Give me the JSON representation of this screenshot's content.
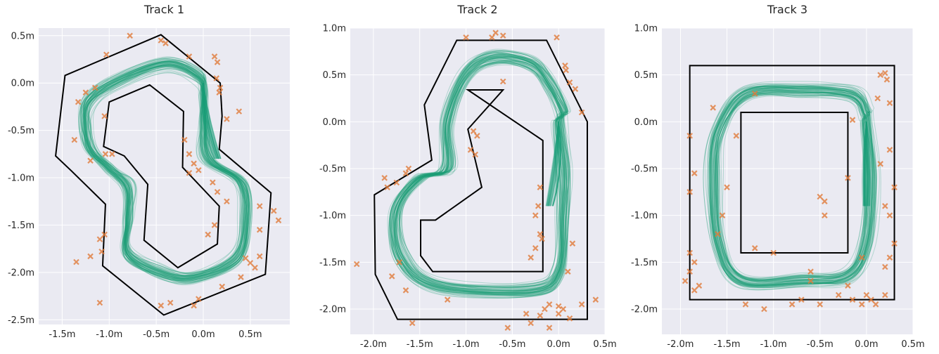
{
  "chart_data": [
    {
      "type": "line",
      "title": "Track 1",
      "xlim": [
        -1.75,
        0.92
      ],
      "ylim": [
        -2.55,
        0.58
      ],
      "x_ticks": [
        -1.5,
        -1.0,
        -0.5,
        0.0,
        0.5
      ],
      "x_tick_labels": [
        "-1.5m",
        "-1.0m",
        "-0.5m",
        "0.0m",
        "0.5m"
      ],
      "y_ticks": [
        0.5,
        0.0,
        -0.5,
        -1.0,
        -1.5,
        -2.0,
        -2.5
      ],
      "y_tick_labels": [
        "0.5m",
        "0.0m",
        "-0.5m",
        "-1.0m",
        "-1.5m",
        "-2.0m",
        "-2.5m"
      ],
      "grid": true,
      "track_outer": [
        [
          -1.47,
          0.08
        ],
        [
          -0.45,
          0.51
        ],
        [
          0.18,
          0.0
        ],
        [
          0.2,
          -0.35
        ],
        [
          0.17,
          -0.7
        ],
        [
          0.72,
          -1.16
        ],
        [
          0.66,
          -2.02
        ],
        [
          -0.42,
          -2.45
        ],
        [
          -1.07,
          -1.93
        ],
        [
          -1.04,
          -1.28
        ],
        [
          -1.4,
          -0.93
        ],
        [
          -1.57,
          -0.77
        ]
      ],
      "track_inner": [
        [
          -1.0,
          -0.2
        ],
        [
          -0.57,
          -0.02
        ],
        [
          -0.21,
          -0.3
        ],
        [
          -0.22,
          -0.89
        ],
        [
          0.17,
          -1.3
        ],
        [
          0.15,
          -1.7
        ],
        [
          -0.27,
          -1.95
        ],
        [
          -0.63,
          -1.66
        ],
        [
          -0.59,
          -1.07
        ],
        [
          -0.84,
          -0.77
        ],
        [
          -1.06,
          -0.67
        ]
      ],
      "centerline": [
        [
          -0.95,
          0.0
        ],
        [
          -0.4,
          0.2
        ],
        [
          -0.05,
          0.07
        ],
        [
          0.0,
          -0.1
        ],
        [
          0.0,
          -0.4
        ],
        [
          0.05,
          -0.8
        ],
        [
          0.4,
          -1.05
        ],
        [
          0.45,
          -1.45
        ],
        [
          0.35,
          -1.85
        ],
        [
          -0.1,
          -2.05
        ],
        [
          -0.45,
          -2.0
        ],
        [
          -0.8,
          -1.8
        ],
        [
          -0.8,
          -1.45
        ],
        [
          -0.8,
          -1.1
        ],
        [
          -1.0,
          -0.9
        ],
        [
          -1.2,
          -0.7
        ],
        [
          -1.25,
          -0.45
        ],
        [
          -1.22,
          -0.2
        ]
      ],
      "attractor_start": [
        0.0,
        0.0
      ],
      "attractor_end": [
        0.15,
        -0.8
      ],
      "markers": [
        [
          -0.78,
          0.5
        ],
        [
          -1.03,
          0.3
        ],
        [
          -0.45,
          0.45
        ],
        [
          -0.4,
          0.42
        ],
        [
          -0.15,
          0.28
        ],
        [
          0.12,
          0.28
        ],
        [
          0.15,
          0.22
        ],
        [
          0.14,
          0.05
        ],
        [
          0.17,
          -0.1
        ],
        [
          0.18,
          -0.05
        ],
        [
          -1.25,
          -0.1
        ],
        [
          -1.33,
          -0.2
        ],
        [
          -1.15,
          -0.05
        ],
        [
          -1.37,
          -0.6
        ],
        [
          -1.04,
          -0.75
        ],
        [
          -1.2,
          -0.82
        ],
        [
          -1.05,
          -0.35
        ],
        [
          -0.2,
          -0.6
        ],
        [
          -0.15,
          -0.75
        ],
        [
          -0.1,
          -0.85
        ],
        [
          -0.05,
          -0.92
        ],
        [
          -0.15,
          -0.95
        ],
        [
          0.1,
          -1.05
        ],
        [
          0.15,
          -1.15
        ],
        [
          0.25,
          -1.25
        ],
        [
          0.6,
          -1.3
        ],
        [
          0.75,
          -1.35
        ],
        [
          0.8,
          -1.45
        ],
        [
          0.6,
          -1.55
        ],
        [
          0.12,
          -1.5
        ],
        [
          0.05,
          -1.6
        ],
        [
          -1.05,
          -1.6
        ],
        [
          -1.1,
          -1.65
        ],
        [
          -1.08,
          -1.78
        ],
        [
          -1.2,
          -1.83
        ],
        [
          -1.35,
          -1.89
        ],
        [
          0.45,
          -1.85
        ],
        [
          0.55,
          -1.95
        ],
        [
          0.5,
          -1.9
        ],
        [
          0.6,
          -1.83
        ],
        [
          0.4,
          -2.05
        ],
        [
          0.2,
          -2.15
        ],
        [
          -0.05,
          -2.28
        ],
        [
          -0.1,
          -2.35
        ],
        [
          -0.35,
          -2.32
        ],
        [
          -0.45,
          -2.35
        ],
        [
          -1.1,
          -2.32
        ],
        [
          0.25,
          -0.38
        ],
        [
          0.38,
          -0.3
        ],
        [
          -0.97,
          -0.75
        ]
      ]
    },
    {
      "type": "line",
      "title": "Track 2",
      "xlim": [
        -2.25,
        0.5
      ],
      "ylim": [
        -2.27,
        1.0
      ],
      "x_ticks": [
        -2.0,
        -1.5,
        -1.0,
        -0.5,
        0.0,
        0.5
      ],
      "x_tick_labels": [
        "-2.0m",
        "-1.5m",
        "-1.0m",
        "-0.5m",
        "0.0m",
        "0.5m"
      ],
      "y_ticks": [
        1.0,
        0.5,
        0.0,
        -0.5,
        -1.0,
        -1.5,
        -2.0
      ],
      "y_tick_labels": [
        "1.0m",
        "0.5m",
        "0.0m",
        "-0.5m",
        "-1.0m",
        "-1.5m",
        "-2.0m"
      ],
      "grid": true,
      "track_outer": [
        [
          -1.1,
          0.87
        ],
        [
          -0.13,
          0.87
        ],
        [
          0.31,
          0.0
        ],
        [
          0.31,
          -2.11
        ],
        [
          -1.74,
          -2.11
        ],
        [
          -1.98,
          -1.63
        ],
        [
          -1.99,
          -0.78
        ],
        [
          -1.37,
          -0.41
        ],
        [
          -1.45,
          0.18
        ]
      ],
      "track_inner": [
        [
          -0.98,
          0.34
        ],
        [
          -0.6,
          0.34
        ],
        [
          -0.98,
          -0.08
        ],
        [
          -0.83,
          -0.7
        ],
        [
          -1.33,
          -1.05
        ],
        [
          -1.49,
          -1.05
        ],
        [
          -1.49,
          -1.43
        ],
        [
          -1.36,
          -1.6
        ],
        [
          -0.17,
          -1.6
        ],
        [
          -0.17,
          -0.2
        ]
      ],
      "centerline": [
        [
          0.0,
          0.0
        ],
        [
          0.05,
          -0.5
        ],
        [
          0.05,
          -1.0
        ],
        [
          0.0,
          -1.6
        ],
        [
          -0.3,
          -1.8
        ],
        [
          -1.3,
          -1.75
        ],
        [
          -1.7,
          -1.45
        ],
        [
          -1.75,
          -0.95
        ],
        [
          -1.5,
          -0.6
        ],
        [
          -1.2,
          -0.5
        ],
        [
          -1.2,
          0.0
        ],
        [
          -1.0,
          0.5
        ],
        [
          -0.7,
          0.68
        ],
        [
          -0.3,
          0.62
        ],
        [
          -0.1,
          0.4
        ],
        [
          0.05,
          0.1
        ]
      ],
      "attractor_start": [
        0.0,
        0.0
      ],
      "attractor_end": [
        -0.1,
        -0.9
      ],
      "markers": [
        [
          -1.0,
          0.9
        ],
        [
          -0.72,
          0.9
        ],
        [
          -0.68,
          0.95
        ],
        [
          -0.6,
          0.92
        ],
        [
          -0.02,
          0.9
        ],
        [
          0.07,
          0.6
        ],
        [
          0.08,
          0.55
        ],
        [
          0.12,
          0.42
        ],
        [
          0.18,
          0.35
        ],
        [
          0.25,
          0.1
        ],
        [
          -0.6,
          0.43
        ],
        [
          -0.92,
          -0.1
        ],
        [
          -0.95,
          -0.3
        ],
        [
          -0.9,
          -0.35
        ],
        [
          -0.88,
          -0.15
        ],
        [
          -1.62,
          -0.5
        ],
        [
          -1.65,
          -0.55
        ],
        [
          -1.75,
          -0.65
        ],
        [
          -1.88,
          -0.6
        ],
        [
          -1.85,
          -0.7
        ],
        [
          -0.2,
          -0.7
        ],
        [
          -0.22,
          -0.9
        ],
        [
          -0.25,
          -1.0
        ],
        [
          -0.2,
          -1.2
        ],
        [
          -0.18,
          -1.25
        ],
        [
          -0.25,
          -1.35
        ],
        [
          -0.3,
          -1.45
        ],
        [
          0.15,
          -1.3
        ],
        [
          0.1,
          -1.6
        ],
        [
          -1.72,
          -1.5
        ],
        [
          -2.18,
          -1.52
        ],
        [
          -1.8,
          -1.65
        ],
        [
          -1.65,
          -1.8
        ],
        [
          -1.58,
          -2.15
        ],
        [
          -1.2,
          -1.9
        ],
        [
          -0.35,
          -2.05
        ],
        [
          -0.3,
          -2.15
        ],
        [
          -0.2,
          -2.07
        ],
        [
          -0.1,
          -1.95
        ],
        [
          0.0,
          -1.97
        ],
        [
          0.05,
          -2.0
        ],
        [
          0.12,
          -2.1
        ],
        [
          -0.15,
          -2.0
        ],
        [
          0.0,
          -2.05
        ],
        [
          0.25,
          -1.95
        ],
        [
          0.4,
          -1.9
        ],
        [
          -0.55,
          -2.2
        ],
        [
          -0.1,
          -2.2
        ]
      ]
    },
    {
      "type": "line",
      "title": "Track 3",
      "xlim": [
        -2.2,
        0.5
      ],
      "ylim": [
        -2.27,
        1.0
      ],
      "x_ticks": [
        -2.0,
        -1.5,
        -1.0,
        -0.5,
        0.0,
        0.5
      ],
      "x_tick_labels": [
        "-2.0m",
        "-1.5m",
        "-1.0m",
        "-0.5m",
        "0.0m",
        "0.5m"
      ],
      "y_ticks": [
        1.0,
        0.5,
        0.0,
        -0.5,
        -1.0,
        -1.5,
        -2.0
      ],
      "y_tick_labels": [
        "1.0m",
        "0.5m",
        "0.0m",
        "-0.5m",
        "-1.0m",
        "-1.5m",
        "-2.0m"
      ],
      "grid": true,
      "track_outer": [
        [
          -1.9,
          0.6
        ],
        [
          0.3,
          0.6
        ],
        [
          0.3,
          -1.9
        ],
        [
          -1.9,
          -1.9
        ]
      ],
      "track_inner": [
        [
          -1.35,
          0.1
        ],
        [
          -0.2,
          0.1
        ],
        [
          -0.2,
          -1.4
        ],
        [
          -1.35,
          -1.4
        ]
      ],
      "centerline": [
        [
          0.0,
          0.0
        ],
        [
          0.05,
          -0.6
        ],
        [
          0.0,
          -1.3
        ],
        [
          -0.2,
          -1.65
        ],
        [
          -0.7,
          -1.7
        ],
        [
          -1.35,
          -1.7
        ],
        [
          -1.6,
          -1.3
        ],
        [
          -1.65,
          -0.6
        ],
        [
          -1.6,
          -0.1
        ],
        [
          -1.3,
          0.3
        ],
        [
          -0.7,
          0.35
        ],
        [
          -0.15,
          0.3
        ],
        [
          0.0,
          0.1
        ]
      ],
      "attractor_start": [
        0.0,
        0.0
      ],
      "attractor_end": [
        0.0,
        -0.9
      ],
      "markers": [
        [
          -1.4,
          -0.15
        ],
        [
          -1.9,
          -0.15
        ],
        [
          -1.85,
          -0.55
        ],
        [
          -1.9,
          -0.75
        ],
        [
          -1.6,
          -1.2
        ],
        [
          -1.55,
          -1.0
        ],
        [
          -1.5,
          -0.7
        ],
        [
          -1.2,
          0.3
        ],
        [
          -0.15,
          0.02
        ],
        [
          0.15,
          -0.45
        ],
        [
          0.25,
          -0.3
        ],
        [
          0.3,
          -0.7
        ],
        [
          0.2,
          -0.9
        ],
        [
          0.25,
          -1.0
        ],
        [
          0.2,
          -1.55
        ],
        [
          -0.05,
          -1.45
        ],
        [
          -0.45,
          -1.0
        ],
        [
          -0.5,
          -0.8
        ],
        [
          -0.45,
          -0.85
        ],
        [
          -0.2,
          -0.6
        ],
        [
          0.3,
          -1.3
        ],
        [
          0.25,
          -1.45
        ],
        [
          -1.9,
          -1.4
        ],
        [
          -1.85,
          -1.5
        ],
        [
          -1.9,
          -1.6
        ],
        [
          -1.85,
          -1.8
        ],
        [
          -1.95,
          -1.7
        ],
        [
          -1.8,
          -1.75
        ],
        [
          -1.2,
          -1.35
        ],
        [
          -1.0,
          -1.4
        ],
        [
          -0.6,
          -1.6
        ],
        [
          -0.6,
          -1.7
        ],
        [
          -0.2,
          -1.75
        ],
        [
          0.0,
          -1.85
        ],
        [
          0.05,
          -1.9
        ],
        [
          -0.05,
          -1.95
        ],
        [
          -0.15,
          -1.9
        ],
        [
          -0.3,
          -1.85
        ],
        [
          -0.5,
          -1.95
        ],
        [
          -0.7,
          -1.9
        ],
        [
          -0.8,
          -1.95
        ],
        [
          -1.1,
          -2.0
        ],
        [
          -1.3,
          -1.95
        ],
        [
          0.2,
          -1.85
        ],
        [
          0.1,
          -1.95
        ],
        [
          0.15,
          0.5
        ],
        [
          0.2,
          0.52
        ],
        [
          0.22,
          0.45
        ],
        [
          0.25,
          0.2
        ],
        [
          0.12,
          0.25
        ],
        [
          -1.65,
          0.15
        ]
      ]
    }
  ]
}
